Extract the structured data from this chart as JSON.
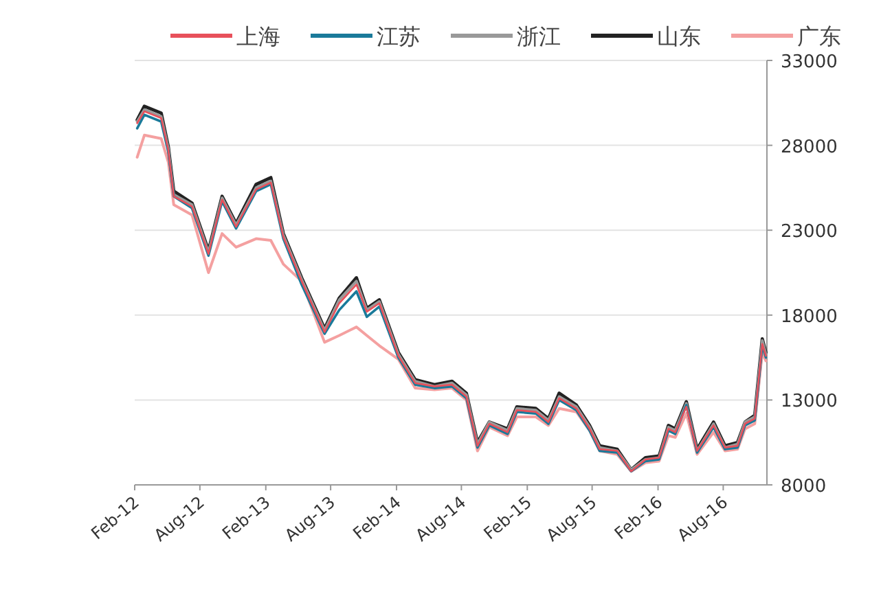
{
  "chart_data": {
    "type": "line",
    "x": [
      "2012-02-08",
      "2012-02-28",
      "2012-04-15",
      "2012-05-05",
      "2012-05-20",
      "2012-07-10",
      "2012-08-25",
      "2012-10-02",
      "2012-11-10",
      "2013-01-05",
      "2013-02-15",
      "2013-03-22",
      "2013-05-12",
      "2013-07-15",
      "2013-08-25",
      "2013-10-12",
      "2013-11-10",
      "2013-12-15",
      "2014-02-06",
      "2014-03-25",
      "2014-05-18",
      "2014-07-06",
      "2014-08-15",
      "2014-09-15",
      "2014-10-18",
      "2014-12-08",
      "2015-01-03",
      "2015-02-25",
      "2015-04-01",
      "2015-05-01",
      "2015-06-18",
      "2015-07-25",
      "2015-08-22",
      "2015-10-10",
      "2015-11-18",
      "2015-12-28",
      "2016-02-04",
      "2016-03-01",
      "2016-03-20",
      "2016-04-20",
      "2016-05-20",
      "2016-07-05",
      "2016-08-06",
      "2016-09-10",
      "2016-10-01",
      "2016-10-28",
      "2016-11-18",
      "2016-11-28"
    ],
    "series": [
      {
        "name": "上海",
        "color": "#e8505b",
        "values": [
          29300,
          30000,
          29600,
          27700,
          25000,
          24400,
          21600,
          24800,
          23200,
          25400,
          25800,
          22600,
          20000,
          17000,
          18700,
          19800,
          18200,
          18700,
          15600,
          14000,
          13800,
          13900,
          13200,
          10300,
          11600,
          11100,
          12400,
          12300,
          11700,
          13100,
          12500,
          11300,
          10100,
          10000,
          8800,
          9500,
          9600,
          11300,
          11100,
          12600,
          10000,
          11500,
          10200,
          10300,
          11600,
          11900,
          16300,
          15600
        ]
      },
      {
        "name": "江苏",
        "color": "#1a7a9a",
        "values": [
          29000,
          29800,
          29400,
          27600,
          25000,
          24300,
          21500,
          24700,
          23100,
          25300,
          25700,
          22500,
          19800,
          16900,
          18300,
          19400,
          17900,
          18500,
          15500,
          13900,
          13700,
          13800,
          13100,
          10200,
          11500,
          11000,
          12300,
          12200,
          11600,
          13000,
          12400,
          11200,
          10000,
          9900,
          8800,
          9400,
          9500,
          11200,
          11000,
          12700,
          9900,
          11400,
          10100,
          10200,
          11500,
          11800,
          16200,
          15500
        ]
      },
      {
        "name": "浙江",
        "color": "#999999",
        "values": [
          29400,
          30100,
          29700,
          27800,
          25100,
          24500,
          21700,
          24900,
          23300,
          25500,
          25900,
          22700,
          20100,
          17100,
          18900,
          20000,
          18300,
          18800,
          15700,
          14100,
          13800,
          14000,
          13300,
          10400,
          11700,
          11200,
          12500,
          12400,
          11800,
          13200,
          12600,
          11400,
          10200,
          10000,
          8900,
          9500,
          9600,
          11400,
          11200,
          12800,
          10000,
          11600,
          10200,
          10400,
          11700,
          12000,
          16500,
          15700
        ]
      },
      {
        "name": "山东",
        "color": "#222222",
        "values": [
          29500,
          30300,
          29900,
          27900,
          25300,
          24600,
          21800,
          25000,
          23400,
          25700,
          26100,
          22800,
          20200,
          17200,
          19000,
          20200,
          18400,
          18900,
          15800,
          14200,
          13900,
          14100,
          13400,
          10500,
          11700,
          11300,
          12600,
          12500,
          11900,
          13400,
          12700,
          11500,
          10300,
          10100,
          8900,
          9600,
          9700,
          11500,
          11300,
          12900,
          10100,
          11700,
          10300,
          10500,
          11700,
          12100,
          16600,
          15800
        ]
      },
      {
        "name": "广东",
        "color": "#f4a0a0",
        "values": [
          27300,
          28600,
          28400,
          27000,
          24500,
          23900,
          20500,
          22800,
          22000,
          22500,
          22400,
          21000,
          20000,
          16400,
          16800,
          17300,
          16800,
          16200,
          15400,
          13700,
          13600,
          13700,
          13000,
          10000,
          11400,
          10900,
          12000,
          12000,
          11500,
          12500,
          12300,
          11200,
          10000,
          9800,
          8800,
          9300,
          9400,
          10900,
          10800,
          12200,
          9800,
          11100,
          10000,
          10100,
          11300,
          11600,
          15800,
          15300
        ]
      }
    ],
    "xlim": [
      "2012-02-01",
      "2016-12-01"
    ],
    "xticks": [
      {
        "value": "2012-02-01",
        "label": "Feb-12"
      },
      {
        "value": "2012-08-01",
        "label": "Aug-12"
      },
      {
        "value": "2013-02-01",
        "label": "Feb-13"
      },
      {
        "value": "2013-08-01",
        "label": "Aug-13"
      },
      {
        "value": "2014-02-01",
        "label": "Feb-14"
      },
      {
        "value": "2014-08-01",
        "label": "Aug-14"
      },
      {
        "value": "2015-02-01",
        "label": "Feb-15"
      },
      {
        "value": "2015-08-01",
        "label": "Aug-15"
      },
      {
        "value": "2016-02-01",
        "label": "Feb-16"
      },
      {
        "value": "2016-08-01",
        "label": "Aug-16"
      }
    ],
    "ylim": [
      8000,
      33000
    ],
    "yticks": [
      8000,
      13000,
      18000,
      23000,
      28000,
      33000
    ],
    "grid": "y",
    "legend": "top",
    "marker": "none",
    "line_style": "solid"
  }
}
